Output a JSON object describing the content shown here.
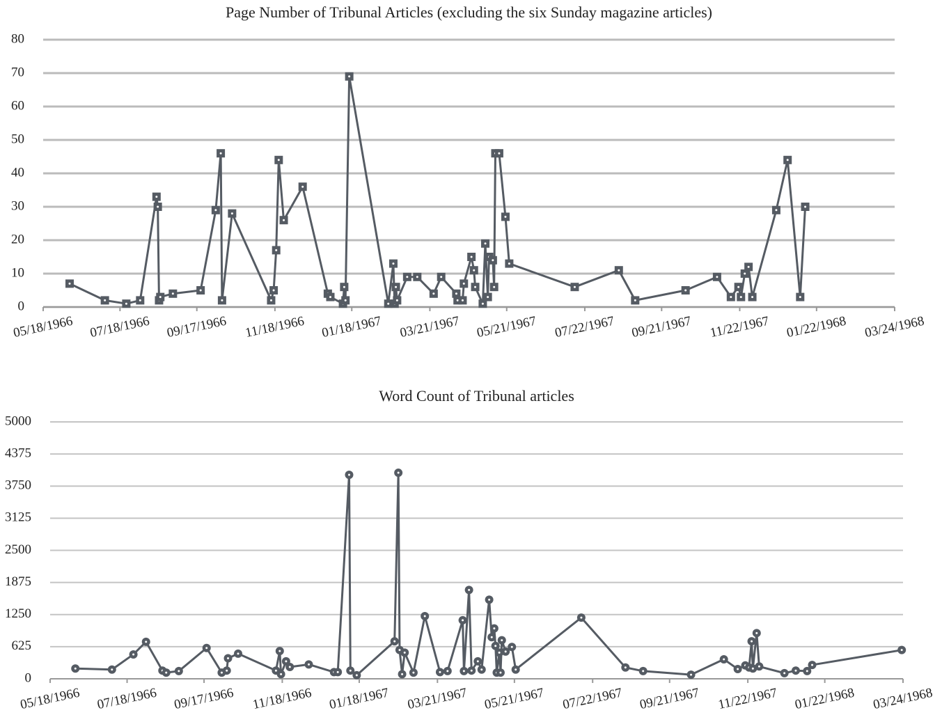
{
  "chart_data": [
    {
      "type": "line",
      "title": "Page Number of Tribunal Articles (excluding the six Sunday magazine articles)",
      "marker": "square",
      "color": "#555b63",
      "grid": true,
      "grid_color": "#bbbbbb",
      "xlim": [
        "05/18/1966",
        "03/24/1968"
      ],
      "xticks": [
        "05/18/1966",
        "07/18/1966",
        "09/17/1966",
        "11/18/1966",
        "01/18/1967",
        "03/21/1967",
        "05/21/1967",
        "07/22/1967",
        "09/21/1967",
        "11/22/1967",
        "01/22/1968",
        "03/24/1968"
      ],
      "ylim": [
        0,
        80
      ],
      "yticks": [
        0,
        10,
        20,
        30,
        40,
        50,
        60,
        70,
        80
      ],
      "x": [
        "06/08/1966",
        "07/06/1966",
        "07/23/1966",
        "08/03/1966",
        "08/16/1966",
        "08/17/1966",
        "08/18/1966",
        "08/19/1966",
        "08/29/1966",
        "09/20/1966",
        "10/02/1966",
        "10/06/1966",
        "10/07/1966",
        "10/15/1966",
        "11/15/1966",
        "11/17/1966",
        "11/19/1966",
        "11/21/1966",
        "11/25/1966",
        "12/10/1966",
        "12/30/1966",
        "01/01/1967",
        "01/11/1967",
        "01/12/1967",
        "01/13/1967",
        "01/16/1967",
        "02/16/1967",
        "02/20/1967",
        "02/21/1967",
        "02/22/1967",
        "02/23/1967",
        "03/03/1967",
        "03/11/1967",
        "03/24/1967",
        "03/30/1967",
        "04/11/1967",
        "04/12/1967",
        "04/16/1967",
        "04/17/1967",
        "04/23/1967",
        "04/25/1967",
        "04/26/1967",
        "05/02/1967",
        "05/04/1967",
        "05/06/1967",
        "05/07/1967",
        "05/10/1967",
        "05/11/1967",
        "05/12/1967",
        "05/15/1967",
        "05/20/1967",
        "05/23/1967",
        "07/14/1967",
        "08/18/1967",
        "08/31/1967",
        "10/10/1967",
        "11/04/1967",
        "11/15/1967",
        "11/21/1967",
        "11/23/1967",
        "11/26/1967",
        "11/29/1967",
        "12/02/1967",
        "12/21/1967",
        "12/30/1967",
        "01/09/1968",
        "01/13/1968"
      ],
      "values": [
        7,
        2,
        1,
        2,
        33,
        30,
        2,
        3,
        4,
        5,
        29,
        46,
        2,
        28,
        2,
        5,
        17,
        44,
        26,
        36,
        4,
        3,
        1,
        6,
        2,
        69,
        1,
        13,
        1,
        6,
        2,
        9,
        9,
        4,
        9,
        4,
        2,
        2,
        7,
        15,
        11,
        6,
        1,
        19,
        3,
        15,
        14,
        6,
        46,
        46,
        27,
        13,
        6,
        11,
        2,
        5,
        9,
        3,
        6,
        3,
        10,
        12,
        3,
        29,
        44,
        3,
        30
      ]
    },
    {
      "type": "line",
      "title": "Word Count of Tribunal articles",
      "marker": "circle",
      "color": "#555b63",
      "grid": true,
      "grid_color": "#c4c4c4",
      "xlim": [
        "05/18/1966",
        "03/24/1968"
      ],
      "xticks": [
        "05/18/1966",
        "07/18/1966",
        "09/17/1966",
        "11/18/1966",
        "01/18/1967",
        "03/21/1967",
        "05/21/1967",
        "07/22/1967",
        "09/21/1967",
        "11/22/1967",
        "01/22/1968",
        "03/24/1968"
      ],
      "ylim": [
        0,
        5000
      ],
      "yticks": [
        0,
        625,
        1250,
        1875,
        2500,
        3125,
        3750,
        4375,
        5000
      ],
      "x": [
        "06/07/1966",
        "07/06/1966",
        "07/23/1966",
        "08/02/1966",
        "08/15/1966",
        "08/18/1966",
        "08/28/1966",
        "09/19/1966",
        "10/01/1966",
        "10/05/1966",
        "10/06/1966",
        "10/14/1966",
        "11/13/1966",
        "11/16/1966",
        "11/17/1966",
        "11/21/1966",
        "11/24/1966",
        "12/09/1966",
        "12/29/1966",
        "01/01/1967",
        "01/10/1967",
        "01/11/1967",
        "01/16/1967",
        "02/15/1967",
        "02/18/1967",
        "02/19/1967",
        "02/21/1967",
        "02/23/1967",
        "03/02/1967",
        "03/11/1967",
        "03/23/1967",
        "03/29/1967",
        "04/10/1967",
        "04/11/1967",
        "04/15/1967",
        "04/17/1967",
        "04/22/1967",
        "04/25/1967",
        "05/01/1967",
        "05/03/1967",
        "05/05/1967",
        "05/06/1967",
        "05/07/1967",
        "05/09/1967",
        "05/10/1967",
        "05/11/1967",
        "05/14/1967",
        "05/19/1967",
        "05/22/1967",
        "07/13/1967",
        "08/17/1967",
        "08/31/1967",
        "10/08/1967",
        "11/03/1967",
        "11/14/1967",
        "11/20/1967",
        "11/23/1967",
        "11/25/1967",
        "11/26/1967",
        "11/29/1967",
        "12/01/1967",
        "12/21/1967",
        "12/30/1967",
        "01/08/1968",
        "01/12/1968",
        "03/23/1968"
      ],
      "values": [
        200,
        180,
        475,
        720,
        160,
        120,
        150,
        600,
        120,
        160,
        400,
        490,
        160,
        540,
        90,
        340,
        230,
        280,
        130,
        130,
        3970,
        160,
        70,
        730,
        4010,
        560,
        90,
        510,
        120,
        1220,
        130,
        150,
        1140,
        150,
        1730,
        160,
        340,
        180,
        1540,
        810,
        980,
        640,
        120,
        510,
        120,
        750,
        530,
        620,
        180,
        1190,
        220,
        150,
        80,
        380,
        190,
        260,
        220,
        730,
        200,
        890,
        240,
        110,
        160,
        150,
        270,
        560
      ]
    }
  ]
}
